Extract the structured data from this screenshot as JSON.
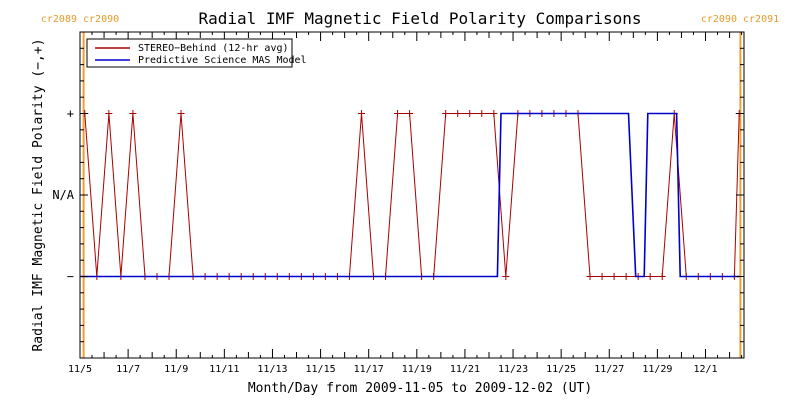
{
  "chart_data": {
    "type": "line",
    "title": "Radial IMF Magnetic Field Polarity Comparisons",
    "xlabel": "Month/Day from 2009-11-05 to 2009-12-02 (UT)",
    "ylabel": "Radial IMF Magnetic Field Polarity (−,+)",
    "x_unit": "day of November 2009 (UT)",
    "x_range": [
      5.0,
      32.6
    ],
    "x_ticks": [
      {
        "x": 5,
        "label": "11/5"
      },
      {
        "x": 7,
        "label": "11/7"
      },
      {
        "x": 9,
        "label": "11/9"
      },
      {
        "x": 11,
        "label": "11/11"
      },
      {
        "x": 13,
        "label": "11/13"
      },
      {
        "x": 15,
        "label": "11/15"
      },
      {
        "x": 17,
        "label": "11/17"
      },
      {
        "x": 19,
        "label": "11/19"
      },
      {
        "x": 21,
        "label": "11/21"
      },
      {
        "x": 23,
        "label": "11/23"
      },
      {
        "x": 25,
        "label": "11/25"
      },
      {
        "x": 27,
        "label": "11/27"
      },
      {
        "x": 29,
        "label": "11/29"
      },
      {
        "x": 31,
        "label": "12/1"
      }
    ],
    "y_categories": [
      {
        "value": -1,
        "label": "−"
      },
      {
        "value": 0,
        "label": "N/A"
      },
      {
        "value": 1,
        "label": "+"
      }
    ],
    "y_range": [
      -2,
      2
    ],
    "carrington": [
      {
        "x": 5.15,
        "label": "cr2089 cr2090"
      },
      {
        "x": 32.45,
        "label": "cr2090 cr2091"
      }
    ],
    "legend_position": "top-left",
    "series": [
      {
        "name": "STEREO−Behind (12-hr avg)",
        "color": "#aa0000",
        "markers": true,
        "points": [
          [
            5.2,
            1
          ],
          [
            5.7,
            -1
          ],
          [
            6.2,
            1
          ],
          [
            6.7,
            -1
          ],
          [
            7.2,
            1
          ],
          [
            7.7,
            -1
          ],
          [
            8.2,
            -1
          ],
          [
            8.7,
            -1
          ],
          [
            9.2,
            1
          ],
          [
            9.7,
            -1
          ],
          [
            10.2,
            -1
          ],
          [
            10.7,
            -1
          ],
          [
            11.2,
            -1
          ],
          [
            11.7,
            -1
          ],
          [
            12.2,
            -1
          ],
          [
            12.7,
            -1
          ],
          [
            13.2,
            -1
          ],
          [
            13.7,
            -1
          ],
          [
            14.2,
            -1
          ],
          [
            14.7,
            -1
          ],
          [
            15.2,
            -1
          ],
          [
            15.7,
            -1
          ],
          [
            16.2,
            -1
          ],
          [
            16.7,
            1
          ],
          [
            17.2,
            -1
          ],
          [
            17.7,
            -1
          ],
          [
            18.2,
            1
          ],
          [
            18.7,
            1
          ],
          [
            19.2,
            -1
          ],
          [
            19.7,
            -1
          ],
          [
            20.2,
            1
          ],
          [
            20.7,
            1
          ],
          [
            21.2,
            1
          ],
          [
            21.7,
            1
          ],
          [
            22.2,
            1
          ],
          [
            22.7,
            -1
          ],
          [
            23.2,
            1
          ],
          [
            23.7,
            1
          ],
          [
            24.2,
            1
          ],
          [
            24.7,
            1
          ],
          [
            25.2,
            1
          ],
          [
            25.7,
            1
          ],
          [
            26.2,
            -1
          ],
          [
            26.7,
            -1
          ],
          [
            27.2,
            -1
          ],
          [
            27.7,
            -1
          ],
          [
            28.2,
            -1
          ],
          [
            28.7,
            -1
          ],
          [
            29.2,
            -1
          ],
          [
            29.7,
            1
          ],
          [
            30.2,
            -1
          ],
          [
            30.7,
            -1
          ],
          [
            31.2,
            -1
          ],
          [
            31.7,
            -1
          ],
          [
            32.2,
            -1
          ],
          [
            32.4,
            1
          ]
        ]
      },
      {
        "name": "Predictive Science MAS Model",
        "color": "#0000cc",
        "markers": false,
        "points": [
          [
            5.0,
            -1
          ],
          [
            22.35,
            -1
          ],
          [
            22.5,
            1
          ],
          [
            27.8,
            1
          ],
          [
            28.1,
            -1
          ],
          [
            28.45,
            -1
          ],
          [
            28.6,
            1
          ],
          [
            29.8,
            1
          ],
          [
            29.95,
            -1
          ],
          [
            32.4,
            -1
          ]
        ]
      }
    ]
  }
}
